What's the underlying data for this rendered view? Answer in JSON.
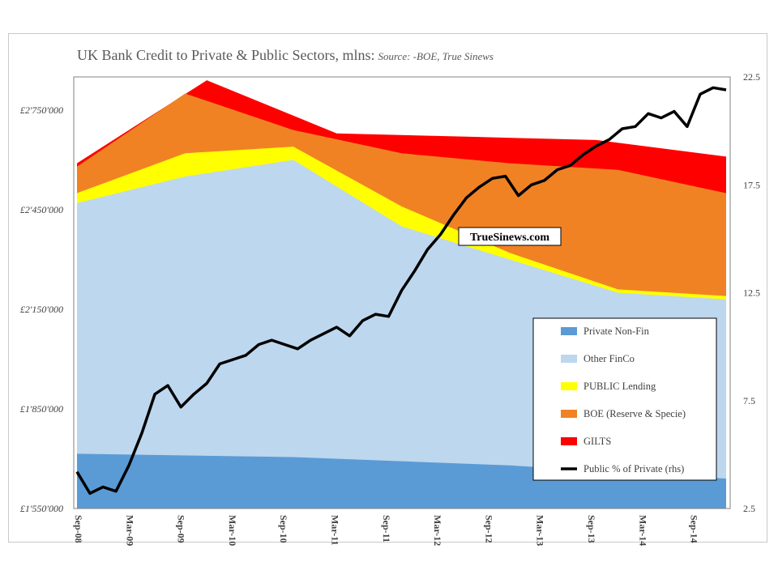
{
  "title": "UK Bank Credit to Private & Public Sectors, mlns:",
  "subtitle": "Source: -BOE, True Sinews",
  "watermark": "TrueSinews.com",
  "chart_data": {
    "type": "area",
    "stacked": true,
    "x_tick_labels": [
      "Sep-08",
      "Mar-09",
      "Sep-09",
      "Mar-10",
      "Sep-10",
      "Mar-11",
      "Sep-11",
      "Mar-12",
      "Sep-12",
      "Mar-13",
      "Sep-13",
      "Mar-14",
      "Sep-14"
    ],
    "y_left": {
      "range": [
        1550000,
        2850000
      ],
      "ticks": [
        1550000,
        1850000,
        2150000,
        2450000,
        2750000
      ],
      "tick_labels": [
        "£1'550'000",
        "£1'850'000",
        "£2'150'000",
        "£2'450'000",
        "£2'750'000"
      ]
    },
    "y_right": {
      "range": [
        2.5,
        22.5
      ],
      "ticks": [
        2.5,
        7.5,
        12.5,
        17.5,
        22.5
      ],
      "tick_labels": [
        "2.5",
        "7.5",
        "12.5",
        "17.5",
        "22.5"
      ]
    },
    "series": [
      {
        "name": "Private Non-Fin",
        "color": "#5b9bd5",
        "kind": "area",
        "values": [
          1715000,
          1705000,
          1680000,
          1640000
        ]
      },
      {
        "name": "Other FinCo",
        "color": "#bdd7ee",
        "kind": "area",
        "values": [
          2470000,
          2550000,
          2600000,
          2400000,
          2300000,
          2200000,
          2180000
        ]
      },
      {
        "name": "PUBLIC Lending",
        "color": "#ffff00",
        "kind": "area",
        "values": [
          2500000,
          2620000,
          2640000,
          2460000,
          2320000,
          2210000,
          2190000
        ]
      },
      {
        "name": "BOE (Reserve & Specie)",
        "color": "#f08224",
        "kind": "area",
        "values": [
          2580000,
          2800000,
          2690000,
          2620000,
          2590000,
          2570000,
          2500000
        ]
      },
      {
        "name": "GILTS",
        "color": "#ff0000",
        "kind": "area",
        "values": [
          2590000,
          2840000,
          2680000,
          2670000,
          2660000,
          2610000
        ]
      },
      {
        "name": "Public % of Private (rhs)",
        "color": "#000000",
        "kind": "line",
        "axis": "right",
        "values": [
          4.2,
          3.2,
          3.5,
          3.3,
          4.5,
          6.0,
          7.8,
          8.2,
          7.2,
          7.8,
          8.3,
          9.2,
          9.4,
          9.6,
          10.1,
          10.3,
          10.1,
          9.9,
          10.3,
          10.6,
          10.9,
          10.5,
          11.2,
          11.5,
          11.4,
          12.6,
          13.5,
          14.5,
          15.2,
          16.1,
          16.9,
          17.4,
          17.8,
          17.9,
          17.0,
          17.5,
          17.7,
          18.2,
          18.4,
          18.9,
          19.3,
          19.6,
          20.1,
          20.2,
          20.8,
          20.6,
          20.9,
          20.2,
          21.7,
          22.0,
          21.9
        ]
      }
    ],
    "legend_position": "bottom-right",
    "grid": false
  }
}
